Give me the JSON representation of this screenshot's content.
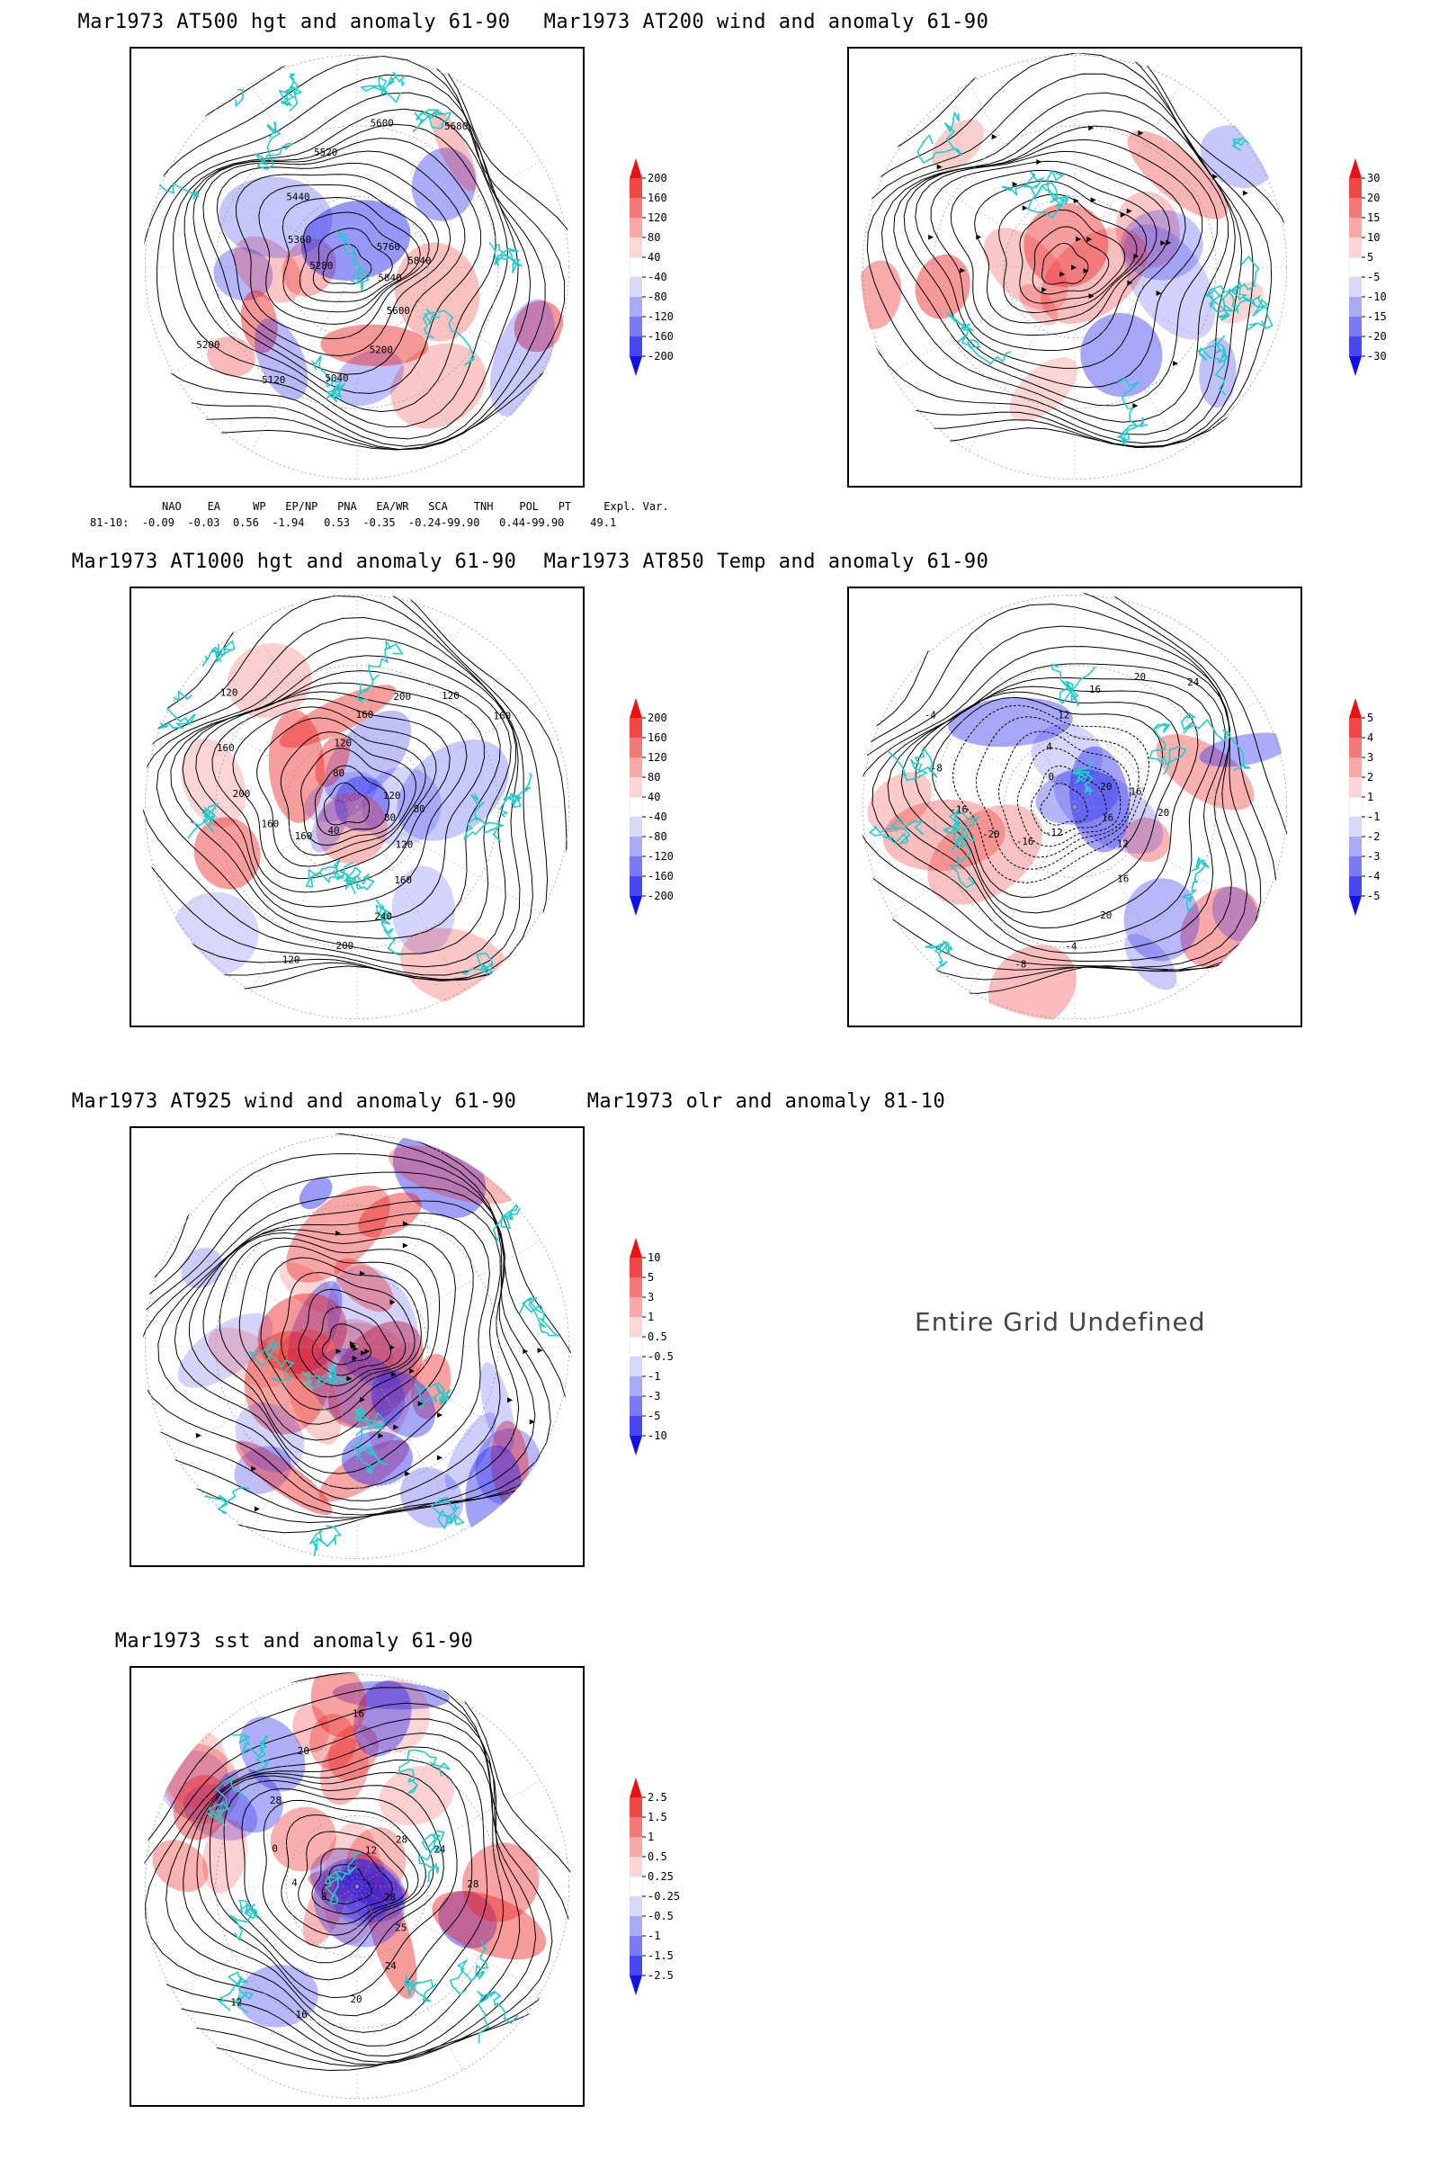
{
  "panels": [
    {
      "id": "p1",
      "title": "Mar1973 AT500 hgt and anomaly 61-90",
      "contour_labels": [
        "5840",
        "5600",
        "5200",
        "5040",
        "5120",
        "5200",
        "5280",
        "5360",
        "5440",
        "5520",
        "5600",
        "5680",
        "5760",
        "5840"
      ],
      "colorbar": [
        "200",
        "160",
        "120",
        "80",
        "40",
        "-40",
        "-80",
        "-120",
        "-160",
        "-200"
      ]
    },
    {
      "id": "p2",
      "title": "Mar1973 AT200 wind and anomaly 61-90",
      "colorbar": [
        "30",
        "20",
        "15",
        "10",
        "5",
        "-5",
        "-10",
        "-15",
        "-20",
        "-30"
      ]
    },
    {
      "id": "p3",
      "title": "Mar1973 AT1000 hgt and anomaly 61-90",
      "contour_labels": [
        "80",
        "120",
        "160",
        "240",
        "200",
        "120",
        "40",
        "160",
        "160",
        "200",
        "160",
        "120",
        "80",
        "120",
        "160",
        "200",
        "120",
        "160",
        "120",
        "80"
      ],
      "colorbar": [
        "200",
        "160",
        "120",
        "80",
        "40",
        "-40",
        "-80",
        "-120",
        "-160",
        "-200"
      ]
    },
    {
      "id": "p4",
      "title": "Mar1973 AT850 Temp and anomaly 61-90",
      "contour_labels": [
        "16",
        "12",
        "16",
        "20",
        "-4",
        "-8",
        "-12",
        "-16",
        "-20",
        "-16",
        "-8",
        "-4",
        "0",
        "4",
        "12",
        "16",
        "20",
        "24",
        "20",
        "16",
        "20"
      ],
      "colorbar": [
        "5",
        "4",
        "3",
        "2",
        "1",
        "-1",
        "-2",
        "-3",
        "-4",
        "-5"
      ]
    },
    {
      "id": "p5",
      "title": "Mar1973 AT925 wind and anomaly 61-90",
      "colorbar": [
        "10",
        "5",
        "3",
        "1",
        "0.5",
        "-0.5",
        "-1",
        "-3",
        "-5",
        "-10"
      ]
    },
    {
      "id": "p6",
      "title": "Mar1973 olr and anomaly 81-10",
      "message": "Entire Grid Undefined"
    },
    {
      "id": "p7",
      "title": "Mar1973 sst and anomaly 61-90",
      "contour_labels": [
        "28",
        "25",
        "24",
        "20",
        "16",
        "12",
        "8",
        "4",
        "0",
        "28",
        "20",
        "16",
        "12",
        "28",
        "24",
        "28"
      ],
      "colorbar": [
        "2.5",
        "1.5",
        "1",
        "0.5",
        "0.25",
        "-0.25",
        "-0.5",
        "-1",
        "-1.5",
        "-2.5"
      ]
    }
  ],
  "indices": {
    "header": "NAO    EA     WP   EP/NP   PNA   EA/WR   SCA    TNH    POL   PT     Expl. Var.",
    "values": "81-10:  -0.09  -0.03  0.56  -1.94   0.53  -0.35  -0.24-99.90   0.44-99.90    49.1"
  },
  "colors": {
    "positive": "#ee2222",
    "negative": "#2222ee",
    "land": "#22cccc",
    "contour": "#000000"
  }
}
